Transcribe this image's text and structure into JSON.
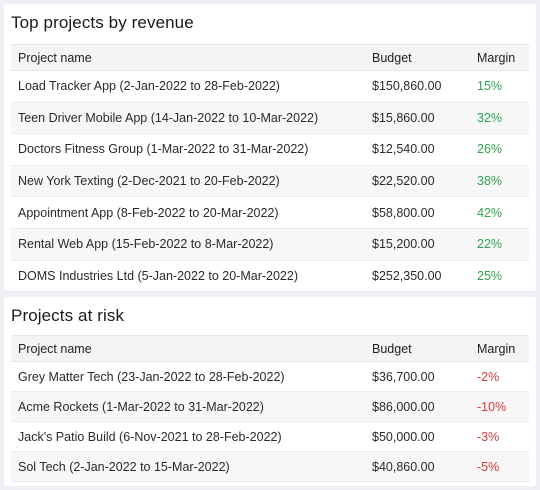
{
  "top_projects": {
    "title": "Top projects by revenue",
    "columns": [
      "Project name",
      "Budget",
      "Margin"
    ],
    "rows": [
      {
        "name": "Load Tracker App (2-Jan-2022 to 28-Feb-2022)",
        "budget": "$150,860.00",
        "margin": "15%"
      },
      {
        "name": "Teen Driver Mobile App (14-Jan-2022 to 10-Mar-2022)",
        "budget": "$15,860.00",
        "margin": "32%"
      },
      {
        "name": "Doctors Fitness Group (1-Mar-2022 to 31-Mar-2022)",
        "budget": "$12,540.00",
        "margin": "26%"
      },
      {
        "name": "New York Texting (2-Dec-2021 to 20-Feb-2022)",
        "budget": "$22,520.00",
        "margin": "38%"
      },
      {
        "name": "Appointment App (8-Feb-2022 to 20-Mar-2022)",
        "budget": "$58,800.00",
        "margin": "42%"
      },
      {
        "name": "Rental Web App (15-Feb-2022 to 8-Mar-2022)",
        "budget": "$15,200.00",
        "margin": "22%"
      },
      {
        "name": "DOMS Industries Ltd (5-Jan-2022 to 20-Mar-2022)",
        "budget": "$252,350.00",
        "margin": "25%"
      }
    ]
  },
  "risk_projects": {
    "title": "Projects at risk",
    "columns": [
      "Project name",
      "Budget",
      "Margin"
    ],
    "rows": [
      {
        "name": "Grey Matter Tech (23-Jan-2022 to 28-Feb-2022)",
        "budget": "$36,700.00",
        "margin": "-2%"
      },
      {
        "name": "Acme Rockets  (1-Mar-2022 to 31-Mar-2022)",
        "budget": "$86,000.00",
        "margin": "-10%"
      },
      {
        "name": "Jack's Patio Build (6-Nov-2021 to 28-Feb-2022)",
        "budget": "$50,000.00",
        "margin": "-3%"
      },
      {
        "name": "Sol Tech  (2-Jan-2022 to 15-Mar-2022)",
        "budget": "$40,860.00",
        "margin": "-5%"
      }
    ]
  },
  "colors": {
    "positive": "#2ea44f",
    "negative": "#d63a3a"
  }
}
